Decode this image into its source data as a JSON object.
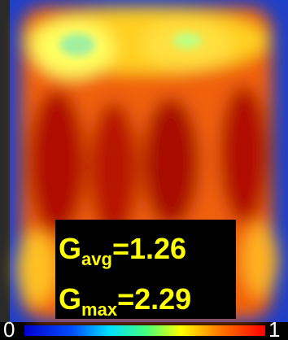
{
  "annotations": [
    {
      "symbol": "G",
      "subscript": "avg",
      "value": "=1.26"
    },
    {
      "symbol": "G",
      "subscript": "max",
      "value": "=2.29"
    }
  ],
  "colorbar": {
    "min": "0",
    "max": "1"
  }
}
